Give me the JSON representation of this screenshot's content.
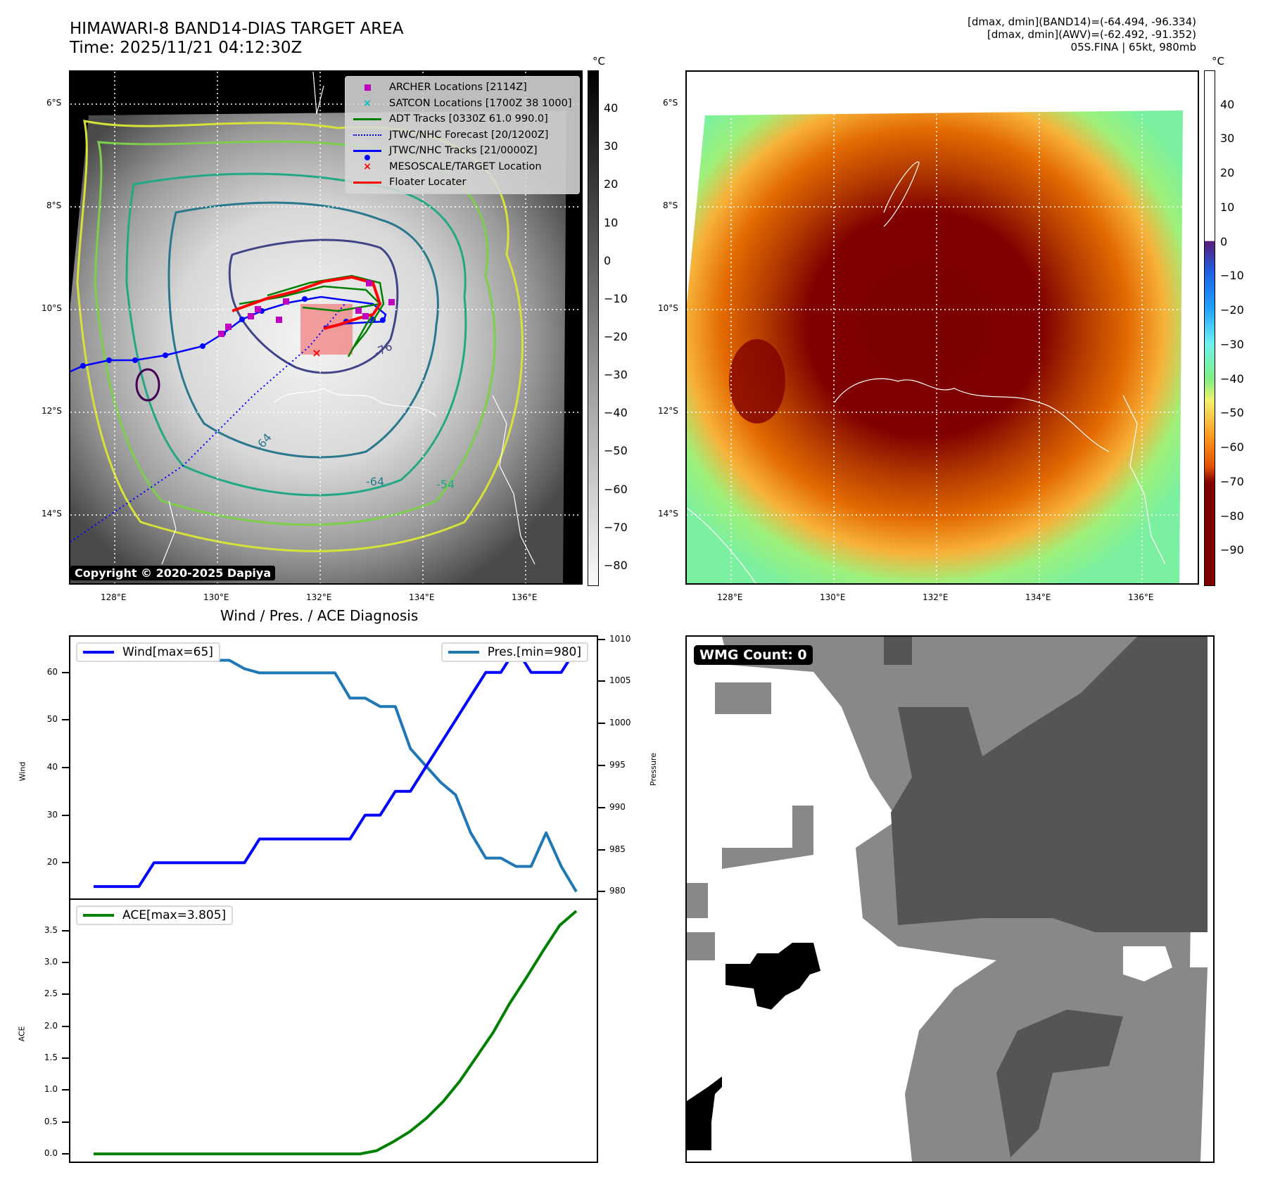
{
  "header": {
    "title": "HIMAWARI-8 BAND14-DIAS TARGET AREA",
    "time": "Time: 2025/11/21 04:12:30Z",
    "info_lines": [
      "[dmax, dmin](BAND14)=(-64.494, -96.334)",
      "[dmax, dmin](AWV)=(-62.492, -91.352)",
      "05S.FINA | 65kt, 980mb"
    ]
  },
  "maps": {
    "lat_labels": [
      "6°S",
      "8°S",
      "10°S",
      "12°S",
      "14°S"
    ],
    "lon_labels": [
      "128°E",
      "130°E",
      "132°E",
      "134°E",
      "136°E"
    ],
    "copyright": "Copyright © 2020-2025 Dapiya",
    "contour_labels": [
      "-76",
      "-64",
      "-54",
      "-64"
    ],
    "legend": [
      {
        "label": "ARCHER Locations [2114Z]",
        "symbol": "square-marker-icon",
        "color": "#bf00bf"
      },
      {
        "label": "SATCON Locations [1700Z 38 1000]",
        "symbol": "x-marker-icon",
        "color": "#00bfbf"
      },
      {
        "label": "ADT Tracks [0330Z 61.0 990.0]",
        "symbol": "solid-line-icon",
        "color": "#008000"
      },
      {
        "label": "JTWC/NHC Forecast [20/1200Z]",
        "symbol": "dotted-line-icon",
        "color": "#0000ff"
      },
      {
        "label": "JTWC/NHC Tracks [21/0000Z]",
        "symbol": "line-dot-icon",
        "color": "#0000ff"
      },
      {
        "label": "MESOSCALE/TARGET Location",
        "symbol": "x-marker-icon",
        "color": "#ff0000"
      },
      {
        "label": "Floater Locater",
        "symbol": "solid-line-icon",
        "color": "#ff0000"
      }
    ],
    "left_colorbar": {
      "unit": "°C",
      "ticks": [
        "40",
        "30",
        "20",
        "10",
        "0",
        "−10",
        "−20",
        "−30",
        "−40",
        "−50",
        "−60",
        "−70",
        "−80"
      ],
      "range": [
        50,
        -85
      ],
      "colormap": "greys"
    },
    "right_colorbar": {
      "unit": "°C",
      "ticks": [
        "40",
        "30",
        "20",
        "10",
        "0",
        "−10",
        "−20",
        "−30",
        "−40",
        "−50",
        "−60",
        "−70",
        "−80",
        "−90"
      ],
      "range": [
        50,
        -100
      ],
      "colormap": "awv"
    }
  },
  "wmg": {
    "label": "WMG Count: 0"
  },
  "chart_data": [
    {
      "type": "line",
      "title": "Wind / Pres. / ACE Diagnosis",
      "ylabel": "Wind",
      "y2label": "Pressure",
      "ylim": [
        12.5,
        67.5
      ],
      "y2lim": [
        979.2,
        1010.3
      ],
      "yticks": [
        "60",
        "50",
        "40",
        "30",
        "20"
      ],
      "y2ticks": [
        "1010",
        "1005",
        "1000",
        "995",
        "990",
        "985",
        "980"
      ],
      "series": [
        {
          "name": "Wind[max=65]",
          "axis": "left",
          "color": "#0000ff",
          "values": [
            15,
            15,
            15,
            15,
            20,
            20,
            20,
            20,
            20,
            20,
            20,
            25,
            25,
            25,
            25,
            25,
            25,
            25,
            30,
            30,
            35,
            35,
            40,
            45,
            50,
            55,
            60,
            60,
            65,
            60,
            60,
            60,
            65
          ]
        },
        {
          "name": "Pres.[min=980]",
          "axis": "right",
          "color": "#1f77b4",
          "values": [
            1009,
            1009,
            1009,
            1009,
            1009,
            1009,
            1009,
            1008,
            1007.5,
            1007.5,
            1006.5,
            1006,
            1006,
            1006,
            1006,
            1006,
            1006,
            1003,
            1003,
            1002,
            1002,
            997,
            995,
            993,
            991.5,
            987,
            984,
            984,
            983,
            983,
            987,
            983,
            980
          ]
        }
      ],
      "legend": [
        "Wind[max=65]",
        "Pres.[min=980]"
      ]
    },
    {
      "type": "line",
      "ylabel": "ACE",
      "ylim": [
        -0.12,
        3.98
      ],
      "yticks": [
        "3.5",
        "3.0",
        "2.5",
        "2.0",
        "1.5",
        "1.0",
        "0.5",
        "0.0"
      ],
      "series": [
        {
          "name": "ACE[max=3.805]",
          "color": "#008000",
          "values": [
            0,
            0,
            0,
            0,
            0,
            0,
            0,
            0,
            0,
            0,
            0,
            0,
            0,
            0,
            0,
            0,
            0,
            0.05,
            0.19,
            0.35,
            0.56,
            0.82,
            1.14,
            1.52,
            1.9,
            2.36,
            2.76,
            3.18,
            3.58,
            3.805
          ]
        }
      ],
      "legend": [
        "ACE[max=3.805]"
      ]
    }
  ]
}
